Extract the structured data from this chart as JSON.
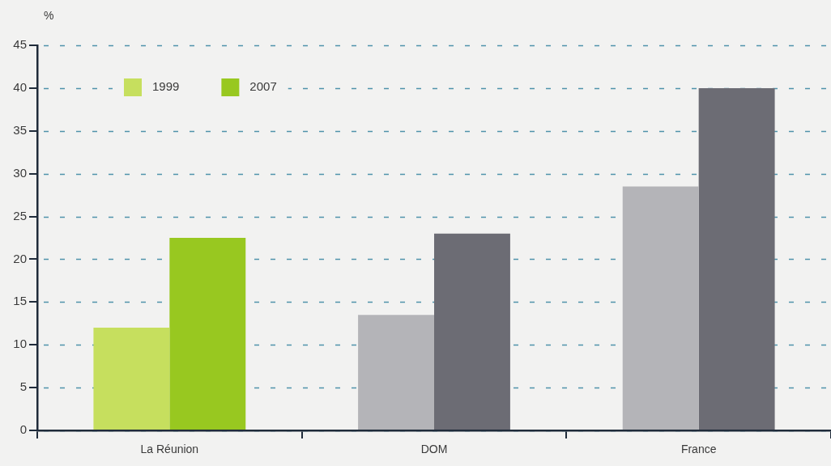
{
  "chart_data": {
    "type": "bar",
    "ylabel": "%",
    "categories": [
      "La Réunion",
      "DOM",
      "France"
    ],
    "series": [
      {
        "name": "1999",
        "color": "#c6df5e",
        "colors": [
          "#c6df5e",
          "#b4b4b8",
          "#b4b4b8"
        ],
        "values": [
          12,
          13.5,
          28.5
        ]
      },
      {
        "name": "2007",
        "color": "#98c820",
        "colors": [
          "#98c820",
          "#6c6c74",
          "#6c6c74"
        ],
        "values": [
          22.5,
          23,
          40
        ]
      }
    ],
    "ylim": [
      0,
      45
    ],
    "yticks": [
      0,
      5,
      10,
      15,
      20,
      25,
      30,
      35,
      40,
      45
    ],
    "grid": "y",
    "legend": "top left"
  }
}
